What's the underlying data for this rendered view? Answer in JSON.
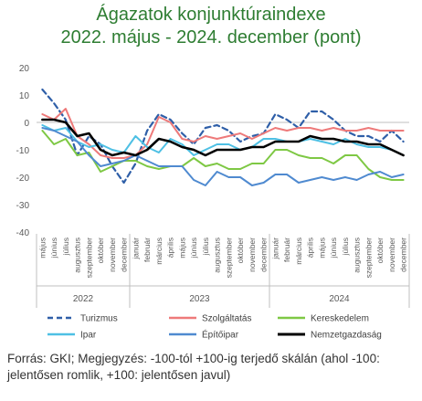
{
  "chart_data": {
    "type": "line",
    "title": "Ágazatok konjunktúraindexe",
    "subtitle": "2022. május - 2024. december (pont)",
    "ylim": [
      -40,
      20
    ],
    "yticks": [
      -40,
      -30,
      -20,
      -10,
      0,
      10,
      20
    ],
    "grid": false,
    "legend_position": "bottom",
    "x": [
      "május",
      "június",
      "július",
      "augusztus",
      "szeptember",
      "október",
      "november",
      "december",
      "január",
      "február",
      "március",
      "április",
      "május",
      "június",
      "július",
      "augusztus",
      "szeptember",
      "október",
      "november",
      "december",
      "január",
      "február",
      "március",
      "április",
      "május",
      "június",
      "július",
      "augusztus",
      "szeptember",
      "október",
      "november",
      "december"
    ],
    "years": [
      {
        "label": "2022",
        "start": 0,
        "end": 7
      },
      {
        "label": "2023",
        "start": 8,
        "end": 19
      },
      {
        "label": "2024",
        "start": 20,
        "end": 31
      }
    ],
    "series": [
      {
        "name": "Turizmus",
        "color": "#2f5fa8",
        "dash": "6,4",
        "width": 2.2,
        "values": [
          12,
          7,
          1,
          -12,
          -5,
          -8,
          -16,
          -22,
          -15,
          -3,
          3,
          1,
          -4,
          -8,
          -2,
          -1,
          -3,
          -7,
          -5,
          -4,
          3,
          1,
          -2,
          4,
          4,
          1,
          -3,
          -5,
          -5,
          -7,
          -3,
          -7
        ]
      },
      {
        "name": "Szolgáltatás",
        "color": "#ee7a7a",
        "dash": "",
        "width": 2,
        "values": [
          3,
          1,
          5,
          -5,
          -8,
          -12,
          -13,
          -13,
          -12,
          -8,
          2,
          0,
          -6,
          -7,
          -5,
          -6,
          -5,
          -4,
          -6,
          -4,
          -2,
          -3,
          -2,
          -2,
          -3,
          -2,
          -3,
          -3,
          -2,
          -3,
          -3,
          -3
        ]
      },
      {
        "name": "Kereskedelem",
        "color": "#7ec844",
        "dash": "",
        "width": 2,
        "values": [
          -3,
          -8,
          -6,
          -12,
          -11,
          -18,
          -16,
          -14,
          -14,
          -16,
          -17,
          -16,
          -16,
          -13,
          -16,
          -15,
          -17,
          -17,
          -15,
          -15,
          -10,
          -10,
          -12,
          -13,
          -13,
          -15,
          -12,
          -12,
          -17,
          -20,
          -21,
          -21
        ]
      },
      {
        "name": "Ipar",
        "color": "#4ec0e4",
        "dash": "",
        "width": 2,
        "values": [
          -1,
          -3,
          -2,
          -7,
          -9,
          -8,
          -10,
          -11,
          -5,
          -9,
          -11,
          -6,
          -8,
          -12,
          -10,
          -8,
          -8,
          -10,
          -9,
          -6,
          -6,
          -7,
          -7,
          -6,
          -7,
          -8,
          -6,
          -8,
          -9,
          -9,
          -10,
          -12
        ]
      },
      {
        "name": "Építőipar",
        "color": "#4f8ad0",
        "dash": "",
        "width": 2,
        "values": [
          -2,
          -3,
          -5,
          -7,
          -12,
          -16,
          -15,
          -14,
          -12,
          -14,
          -16,
          -16,
          -16,
          -21,
          -23,
          -18,
          -20,
          -20,
          -23,
          -22,
          -19,
          -19,
          -22,
          -21,
          -20,
          -21,
          -20,
          -21,
          -19,
          -18,
          -20,
          -19
        ]
      },
      {
        "name": "Nemzetgazdaság",
        "color": "#000000",
        "dash": "",
        "width": 2.6,
        "values": [
          1,
          1,
          0,
          -5,
          -4,
          -10,
          -12,
          -11,
          -12,
          -10,
          -6,
          -7,
          -9,
          -10,
          -12,
          -10,
          -10,
          -10,
          -9,
          -9,
          -7,
          -7,
          -7,
          -5,
          -6,
          -6,
          -7,
          -7,
          -8,
          -8,
          -10,
          -12
        ]
      }
    ]
  },
  "source_note": "Forrás: GKI; Megjegyzés: -100-tól +100-ig terjedő skálán (ahol -100: jelentősen romlik, +100: jelentősen javul)"
}
